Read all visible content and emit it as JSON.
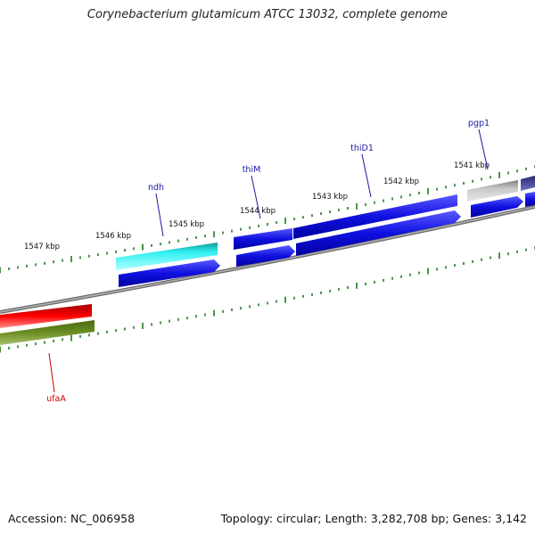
{
  "title": "Corynebacterium glutamicum ATCC 13032, complete genome",
  "footer": {
    "accession": "Accession: NC_006958",
    "summary": "Topology: circular; Length: 3,282,708 bp; Genes: 3,142"
  },
  "kbp_labels": [
    "1541 kbp",
    "1542 kbp",
    "1543 kbp",
    "1544 kbp",
    "1545 kbp",
    "1546 kbp",
    "1547 kbp"
  ],
  "gene_labels": [
    {
      "id": "pgp1",
      "text": "pgp1",
      "color": "#1a1aa0"
    },
    {
      "id": "thiD1",
      "text": "thiD1",
      "color": "#1a1aa0"
    },
    {
      "id": "thiM",
      "text": "thiM",
      "color": "#1a1aa0"
    },
    {
      "id": "ndh",
      "text": "ndh",
      "color": "#1a1aa0"
    },
    {
      "id": "ufaA",
      "text": "ufaA",
      "color": "#cc0000"
    }
  ],
  "colors": {
    "backbone": "#8a8a8a",
    "tick": "#1f7a1f",
    "blue": "#1010e0",
    "cyan": "#18e6e6",
    "gray": "#b8b8b8",
    "slate": "#4a4a9a",
    "red": "#ee0000",
    "olive": "#6b8e23"
  }
}
